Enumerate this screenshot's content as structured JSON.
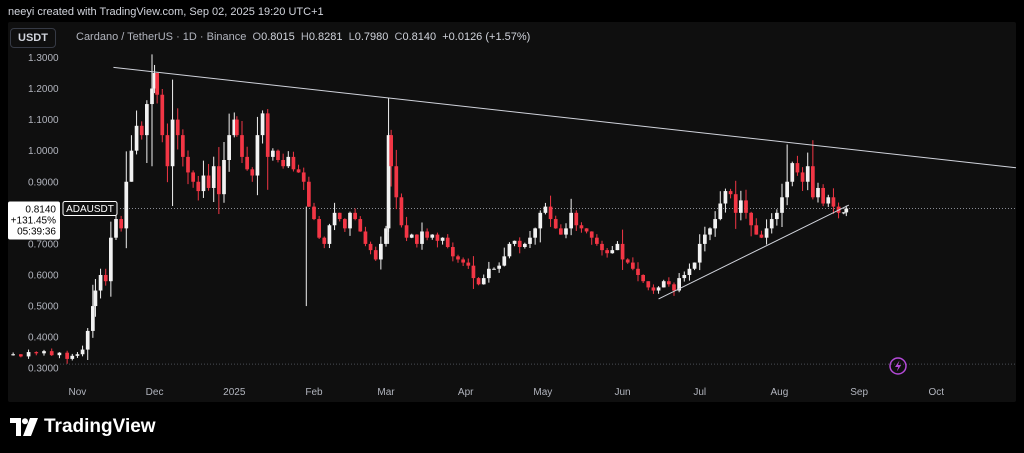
{
  "header": {
    "credit": "neeyi created with TradingView.com, Sep 02, 2025 19:20 UTC+1"
  },
  "toolbar": {
    "currency_button": "USDT"
  },
  "symbol_info": {
    "name": "Cardano / TetherUS · 1D · Binance",
    "o_label": "O",
    "o_value": "0.8015",
    "h_label": "H",
    "h_value": "0.8281",
    "l_label": "L",
    "l_value": "0.7980",
    "c_label": "C",
    "c_value": "0.8140",
    "change": "+0.0126 (+1.57%)"
  },
  "price_label": {
    "price": "0.8140",
    "change_pct": "+131.45%",
    "countdown": "05:39:36",
    "ticker": "ADAUSDT"
  },
  "logo": {
    "text": "TradingView"
  },
  "colors": {
    "up": "#f2f2f2",
    "down": "#f23645",
    "background": "#0f0f0f",
    "trendline": "#d1d4dc"
  },
  "chart_data": {
    "type": "candlestick",
    "symbol": "ADAUSDT",
    "interval": "1D",
    "y_ticks": [
      "1.3000",
      "1.2000",
      "1.1000",
      "1.0000",
      "0.9000",
      "0.8000",
      "0.7000",
      "0.6000",
      "0.5000",
      "0.4000",
      "0.3000"
    ],
    "ylim": [
      0.275,
      1.34
    ],
    "x_ticks": [
      {
        "label": "Nov",
        "x": 0
      },
      {
        "label": "Dec",
        "x": 30
      },
      {
        "label": "2025",
        "x": 61
      },
      {
        "label": "Feb",
        "x": 92
      },
      {
        "label": "Mar",
        "x": 120
      },
      {
        "label": "Apr",
        "x": 151
      },
      {
        "label": "May",
        "x": 181
      },
      {
        "label": "Jun",
        "x": 212
      },
      {
        "label": "Jul",
        "x": 242
      },
      {
        "label": "Aug",
        "x": 273
      },
      {
        "label": "Sep",
        "x": 304
      },
      {
        "label": "Oct",
        "x": 334
      }
    ],
    "xlim": [
      -27,
      365
    ],
    "last_price": 0.814,
    "low_line": 0.315,
    "closes": [
      [
        -25,
        0.345
      ],
      [
        -22,
        0.338
      ],
      [
        -19,
        0.352
      ],
      [
        -16,
        0.348
      ],
      [
        -13,
        0.355
      ],
      [
        -10,
        0.342
      ],
      [
        -7,
        0.35
      ],
      [
        -4,
        0.33
      ],
      [
        -2,
        0.34
      ],
      [
        0,
        0.345
      ],
      [
        2,
        0.36
      ],
      [
        4,
        0.42
      ],
      [
        6,
        0.5
      ],
      [
        7,
        0.55
      ],
      [
        9,
        0.6
      ],
      [
        11,
        0.58
      ],
      [
        13,
        0.72
      ],
      [
        15,
        0.78
      ],
      [
        17,
        0.75
      ],
      [
        19,
        0.9
      ],
      [
        21,
        1.0
      ],
      [
        23,
        1.08
      ],
      [
        25,
        1.05
      ],
      [
        27,
        1.15
      ],
      [
        29,
        1.2
      ],
      [
        30,
        1.25
      ],
      [
        31,
        1.18
      ],
      [
        33,
        1.05
      ],
      [
        35,
        0.95
      ],
      [
        37,
        1.1
      ],
      [
        39,
        1.05
      ],
      [
        41,
        0.98
      ],
      [
        43,
        0.93
      ],
      [
        45,
        0.9
      ],
      [
        47,
        0.87
      ],
      [
        49,
        0.92
      ],
      [
        51,
        0.88
      ],
      [
        53,
        0.95
      ],
      [
        55,
        0.86
      ],
      [
        57,
        0.97
      ],
      [
        59,
        1.05
      ],
      [
        61,
        1.1
      ],
      [
        62,
        1.05
      ],
      [
        64,
        0.98
      ],
      [
        66,
        0.94
      ],
      [
        68,
        0.92
      ],
      [
        70,
        1.05
      ],
      [
        72,
        1.12
      ],
      [
        74,
        0.98
      ],
      [
        76,
        1.0
      ],
      [
        78,
        0.97
      ],
      [
        80,
        0.95
      ],
      [
        82,
        0.98
      ],
      [
        84,
        0.94
      ],
      [
        86,
        0.93
      ],
      [
        88,
        0.9
      ],
      [
        90,
        0.82
      ],
      [
        92,
        0.78
      ],
      [
        94,
        0.72
      ],
      [
        96,
        0.7
      ],
      [
        98,
        0.76
      ],
      [
        100,
        0.8
      ],
      [
        102,
        0.78
      ],
      [
        104,
        0.75
      ],
      [
        106,
        0.8
      ],
      [
        108,
        0.78
      ],
      [
        110,
        0.74
      ],
      [
        112,
        0.7
      ],
      [
        114,
        0.68
      ],
      [
        116,
        0.65
      ],
      [
        118,
        0.7
      ],
      [
        120,
        0.75
      ],
      [
        121,
        1.05
      ],
      [
        122,
        0.95
      ],
      [
        124,
        0.85
      ],
      [
        126,
        0.76
      ],
      [
        128,
        0.72
      ],
      [
        130,
        0.73
      ],
      [
        132,
        0.7
      ],
      [
        134,
        0.74
      ],
      [
        136,
        0.72
      ],
      [
        138,
        0.73
      ],
      [
        140,
        0.71
      ],
      [
        142,
        0.72
      ],
      [
        144,
        0.69
      ],
      [
        146,
        0.66
      ],
      [
        148,
        0.65
      ],
      [
        150,
        0.64
      ],
      [
        152,
        0.63
      ],
      [
        154,
        0.59
      ],
      [
        156,
        0.57
      ],
      [
        158,
        0.59
      ],
      [
        160,
        0.62
      ],
      [
        162,
        0.62
      ],
      [
        164,
        0.63
      ],
      [
        166,
        0.66
      ],
      [
        168,
        0.7
      ],
      [
        170,
        0.71
      ],
      [
        172,
        0.69
      ],
      [
        174,
        0.7
      ],
      [
        176,
        0.72
      ],
      [
        178,
        0.75
      ],
      [
        180,
        0.8
      ],
      [
        182,
        0.82
      ],
      [
        184,
        0.78
      ],
      [
        186,
        0.75
      ],
      [
        188,
        0.73
      ],
      [
        190,
        0.75
      ],
      [
        192,
        0.8
      ],
      [
        194,
        0.76
      ],
      [
        196,
        0.75
      ],
      [
        198,
        0.74
      ],
      [
        200,
        0.72
      ],
      [
        202,
        0.7
      ],
      [
        204,
        0.68
      ],
      [
        206,
        0.67
      ],
      [
        208,
        0.68
      ],
      [
        210,
        0.7
      ],
      [
        212,
        0.65
      ],
      [
        214,
        0.64
      ],
      [
        216,
        0.62
      ],
      [
        218,
        0.6
      ],
      [
        220,
        0.58
      ],
      [
        222,
        0.56
      ],
      [
        224,
        0.55
      ],
      [
        226,
        0.56
      ],
      [
        228,
        0.58
      ],
      [
        230,
        0.57
      ],
      [
        232,
        0.55
      ],
      [
        234,
        0.59
      ],
      [
        236,
        0.6
      ],
      [
        238,
        0.62
      ],
      [
        240,
        0.64
      ],
      [
        242,
        0.7
      ],
      [
        244,
        0.73
      ],
      [
        246,
        0.75
      ],
      [
        248,
        0.78
      ],
      [
        250,
        0.83
      ],
      [
        252,
        0.87
      ],
      [
        254,
        0.86
      ],
      [
        256,
        0.8
      ],
      [
        258,
        0.84
      ],
      [
        260,
        0.8
      ],
      [
        262,
        0.76
      ],
      [
        264,
        0.73
      ],
      [
        266,
        0.72
      ],
      [
        268,
        0.75
      ],
      [
        270,
        0.78
      ],
      [
        272,
        0.8
      ],
      [
        274,
        0.85
      ],
      [
        276,
        0.9
      ],
      [
        278,
        0.96
      ],
      [
        280,
        0.93
      ],
      [
        282,
        0.9
      ],
      [
        284,
        0.95
      ],
      [
        286,
        0.85
      ],
      [
        288,
        0.88
      ],
      [
        290,
        0.83
      ],
      [
        292,
        0.85
      ],
      [
        294,
        0.82
      ],
      [
        296,
        0.8
      ],
      [
        298,
        0.8015
      ],
      [
        299,
        0.814
      ]
    ],
    "trendlines": [
      {
        "name": "resistance",
        "points": [
          [
            14,
            1.268
          ],
          [
            365,
            0.945
          ]
        ]
      },
      {
        "name": "support",
        "points": [
          [
            226,
            0.523
          ],
          [
            300,
            0.825
          ]
        ]
      }
    ]
  }
}
